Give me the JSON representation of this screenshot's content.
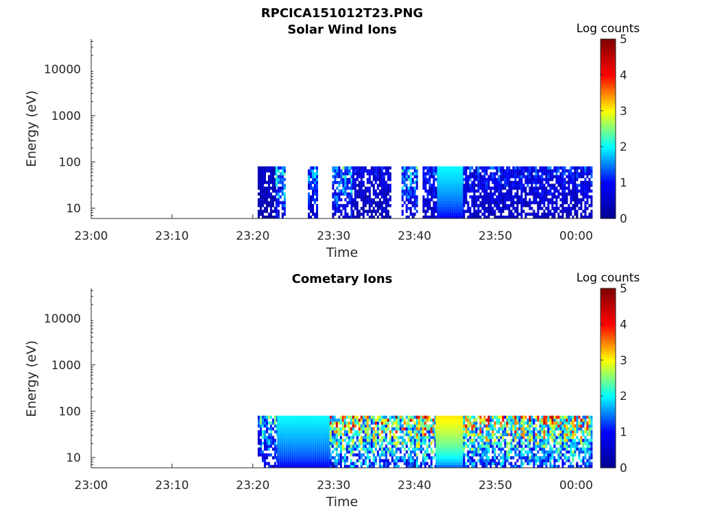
{
  "figure_title": "RPCICA151012T23.PNG",
  "colormap": [
    "#00008f",
    "#0000ff",
    "#00ffff",
    "#ffff00",
    "#ff0000",
    "#800000"
  ],
  "chart_data": [
    {
      "type": "heatmap",
      "title": "Solar Wind Ions",
      "xlabel": "Time",
      "ylabel": "Energy (eV)",
      "x_ticks": [
        "23:00",
        "23:10",
        "23:20",
        "23:30",
        "23:40",
        "23:50",
        "00:00"
      ],
      "x_tick_minutes": [
        0,
        10,
        20,
        30,
        40,
        50,
        60
      ],
      "xlim_minutes": [
        0,
        62
      ],
      "y_scale": "log",
      "y_ticks": [
        "10",
        "100",
        "1000",
        "10000"
      ],
      "y_tick_values": [
        10,
        100,
        1000,
        10000
      ],
      "ylim": [
        6,
        45000
      ],
      "grid": false,
      "colorbar": {
        "label": "Log counts",
        "ticks": [
          "0",
          "1",
          "2",
          "3",
          "4",
          "5"
        ],
        "range": [
          0,
          5
        ]
      },
      "data_time_range_minutes": [
        20.6,
        62
      ],
      "data_energy_range_eV": [
        6,
        80
      ],
      "bursts": [
        {
          "t": [
            20.6,
            22.8
          ],
          "level": 0.5
        },
        {
          "t": [
            22.8,
            24.0
          ],
          "level": 1.5
        },
        {
          "t": [
            26.8,
            28.0
          ],
          "level": 1.3
        },
        {
          "t": [
            29.8,
            32.3
          ],
          "level": 1.5
        },
        {
          "t": [
            32.3,
            37.0
          ],
          "level": 0.7
        },
        {
          "t": [
            38.4,
            40.4
          ],
          "level": 1.4
        },
        {
          "t": [
            41.0,
            42.8
          ],
          "level": 1.0
        },
        {
          "t": [
            42.8,
            46.0
          ],
          "level": 2.0
        },
        {
          "t": [
            46.0,
            62.0
          ],
          "level": 0.9
        }
      ]
    },
    {
      "type": "heatmap",
      "title": "Cometary Ions",
      "xlabel": "Time",
      "ylabel": "Energy (eV)",
      "x_ticks": [
        "23:00",
        "23:10",
        "23:20",
        "23:30",
        "23:40",
        "23:50",
        "00:00"
      ],
      "x_tick_minutes": [
        0,
        10,
        20,
        30,
        40,
        50,
        60
      ],
      "xlim_minutes": [
        0,
        62
      ],
      "y_scale": "log",
      "y_ticks": [
        "10",
        "100",
        "1000",
        "10000"
      ],
      "y_tick_values": [
        10,
        100,
        1000,
        10000
      ],
      "ylim": [
        6,
        45000
      ],
      "grid": false,
      "colorbar": {
        "label": "Log counts",
        "ticks": [
          "0",
          "1",
          "2",
          "3",
          "4",
          "5"
        ],
        "range": [
          0,
          5
        ]
      },
      "data_time_range_minutes": [
        20.6,
        62
      ],
      "data_energy_range_eV": [
        6,
        80
      ],
      "bursts": [
        {
          "t": [
            20.6,
            23.0
          ],
          "level": 1.6
        },
        {
          "t": [
            23.0,
            29.5
          ],
          "level": 2.0
        },
        {
          "t": [
            29.5,
            42.6
          ],
          "level": 2.6
        },
        {
          "t": [
            42.6,
            46.0
          ],
          "level": 3.1
        },
        {
          "t": [
            46.0,
            62.0
          ],
          "level": 2.6
        }
      ]
    }
  ]
}
